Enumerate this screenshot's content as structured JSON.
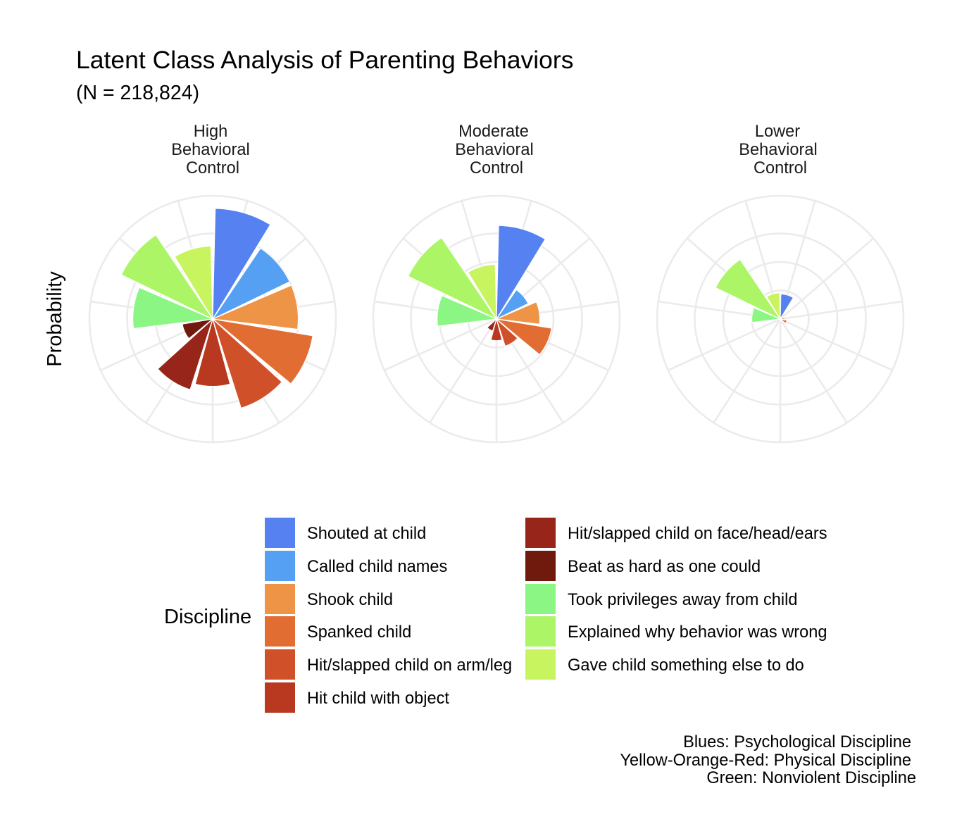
{
  "title": "Latent Class Analysis of Parenting Behaviors",
  "subtitle": "(N = 218,824)",
  "y_axis_label": "Probability",
  "legend": {
    "title": "Discipline",
    "items": [
      {
        "label": "Shouted at child",
        "color": "#5581F1"
      },
      {
        "label": "Called child names",
        "color": "#56A0F4"
      },
      {
        "label": "Shook child",
        "color": "#ED9447"
      },
      {
        "label": "Spanked child",
        "color": "#E26D33"
      },
      {
        "label": "Hit/slapped child on arm/leg",
        "color": "#D0502A"
      },
      {
        "label": "Hit child with object",
        "color": "#B8391F"
      },
      {
        "label": "Hit/slapped child on face/head/ears",
        "color": "#982519"
      },
      {
        "label": "Beat as hard as one could",
        "color": "#6F1A0D"
      },
      {
        "label": "Took privileges away from child",
        "color": "#8BF683"
      },
      {
        "label": "Explained why behavior was wrong",
        "color": "#ABF566"
      },
      {
        "label": "Gave child something else to do",
        "color": "#C8F55F"
      }
    ]
  },
  "caption": [
    "Blues: Psychological Discipline",
    "Yellow-Orange-Red: Physical Discipline",
    "Green: Nonviolent Discipline"
  ],
  "chart_data": {
    "type": "bar",
    "coord": "polar",
    "title": "Latent Class Analysis of Parenting Behaviors",
    "subtitle": "(N = 218,824)",
    "xlabel": "",
    "ylabel": "Probability",
    "ylim": [
      0,
      1
    ],
    "grid": true,
    "grid_breaks": [
      0.25,
      0.5,
      0.75
    ],
    "legend_position": "bottom",
    "legend_title": "Discipline",
    "categories": [
      "Shouted at child",
      "Called child names",
      "Shook child",
      "Spanked child",
      "Hit/slapped child on arm/leg",
      "Hit child with object",
      "Hit/slapped child on face/head/ears",
      "Beat as hard as one could",
      "Took privileges away from child",
      "Explained why behavior was wrong",
      "Gave child something else to do"
    ],
    "colors": [
      "#5581F1",
      "#56A0F4",
      "#ED9447",
      "#E26D33",
      "#D0502A",
      "#B8391F",
      "#982519",
      "#6F1A0D",
      "#8BF683",
      "#ABF566",
      "#C8F55F"
    ],
    "panels": [
      {
        "label_lines": [
          "High",
          "Behavioral",
          "Control"
        ],
        "values": [
          0.97,
          0.75,
          0.75,
          0.89,
          0.82,
          0.59,
          0.65,
          0.27,
          0.7,
          0.89,
          0.64
        ]
      },
      {
        "label_lines": [
          "Moderate",
          "Behavioral",
          "Control"
        ],
        "values": [
          0.82,
          0.31,
          0.38,
          0.49,
          0.25,
          0.19,
          0.11,
          0.01,
          0.52,
          0.86,
          0.48
        ]
      },
      {
        "label_lines": [
          "Lower",
          "Behavioral",
          "Control"
        ],
        "values": [
          0.22,
          0.03,
          0.04,
          0.06,
          0.02,
          0.01,
          0.01,
          0.01,
          0.25,
          0.63,
          0.23
        ]
      }
    ]
  }
}
